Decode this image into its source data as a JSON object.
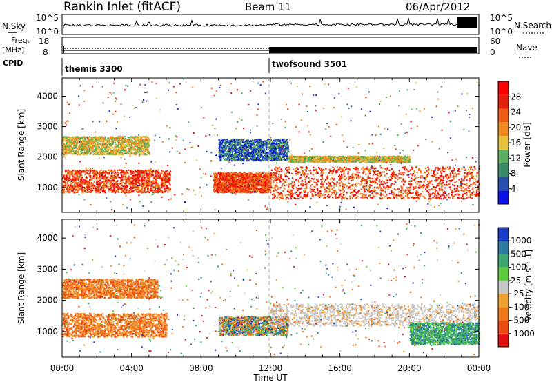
{
  "header": {
    "title": "Rankin Inlet (fitACF)",
    "beam": "Beam 11",
    "date": "06/Apr/2012"
  },
  "top_panels": {
    "nsky_label": "N.Sky",
    "nsky_ticks": [
      "10^5",
      "10^0"
    ],
    "nsearch_label": "N.Search",
    "nsearch_ticks": [
      "10^5",
      "10^0"
    ],
    "freq_label": "Freq.",
    "freq_unit": "[MHz]",
    "freq_ticks": [
      "18",
      "8"
    ],
    "nave_label": "Nave",
    "nave_ticks": [
      "60",
      "0"
    ],
    "cpid_label": "CPID",
    "cpid_modes": [
      {
        "name": "themis 3300",
        "start_hour": 0
      },
      {
        "name": "twofsound 3501",
        "start_hour": 12
      }
    ]
  },
  "chart_data": [
    {
      "type": "heatmap",
      "parameter": "Power",
      "ylabel": "Slant Range [km]",
      "ylim": [
        180,
        4600
      ],
      "y_ticks": [
        1000,
        2000,
        3000,
        4000
      ],
      "x_ticks": [
        "00:00",
        "04:00",
        "08:00",
        "12:00",
        "16:00",
        "20:00",
        "00:00"
      ],
      "xlim_hours": [
        0,
        24
      ],
      "colorbar": {
        "label": "Power [dB]",
        "ticks": [
          "4",
          "8",
          "12",
          "16",
          "20",
          "24",
          "28"
        ],
        "colors": [
          "#0a10e6",
          "#2a4fb0",
          "#3a8a6a",
          "#5ab060",
          "#e6c23a",
          "#f08a1e",
          "#ee5a12",
          "#e4200c",
          "#ff0000"
        ]
      },
      "regions": [
        {
          "t": [
            0.0,
            6.2
          ],
          "r": [
            850,
            1600
          ],
          "level": "high"
        },
        {
          "t": [
            0.0,
            5.0
          ],
          "r": [
            2100,
            2700
          ],
          "level": "medium"
        },
        {
          "t": [
            8.7,
            12.0
          ],
          "r": [
            850,
            1500
          ],
          "level": "high"
        },
        {
          "t": [
            12.0,
            24.0
          ],
          "r": [
            650,
            1700
          ],
          "level": "high"
        },
        {
          "t": [
            9.0,
            13.0
          ],
          "r": [
            1900,
            2600
          ],
          "level": "low"
        },
        {
          "t": [
            13.0,
            20.0
          ],
          "r": [
            1850,
            2050
          ],
          "level": "medium"
        }
      ]
    },
    {
      "type": "heatmap",
      "parameter": "Velocity",
      "ylabel": "Slant Range [km]",
      "ylim": [
        180,
        4600
      ],
      "y_ticks": [
        1000,
        2000,
        3000,
        4000
      ],
      "x_ticks": [
        "00:00",
        "04:00",
        "08:00",
        "12:00",
        "16:00",
        "20:00",
        "00:00"
      ],
      "xlabel": "Time UT",
      "xlim_hours": [
        0,
        24
      ],
      "colorbar": {
        "label": "Velocity [m s^-1]",
        "ticks": [
          "1000",
          "500",
          "100",
          "25",
          "-25",
          "-100",
          "-500",
          "-1000"
        ],
        "colors": [
          "#1a3cc8",
          "#2a7aa0",
          "#3aa870",
          "#5ccc3a",
          "#c8c8c8",
          "#f0a030",
          "#f07818",
          "#ee4a10",
          "#e41010"
        ]
      },
      "regions": [
        {
          "t": [
            0.0,
            6.0
          ],
          "r": [
            850,
            1600
          ],
          "level": "negative"
        },
        {
          "t": [
            0.0,
            5.5
          ],
          "r": [
            2100,
            2700
          ],
          "level": "negative"
        },
        {
          "t": [
            9.0,
            13.0
          ],
          "r": [
            900,
            1500
          ],
          "level": "mixed"
        },
        {
          "t": [
            12.0,
            24.0
          ],
          "r": [
            1200,
            1900
          ],
          "level": "near-zero"
        },
        {
          "t": [
            20.0,
            24.0
          ],
          "r": [
            600,
            1300
          ],
          "level": "positive"
        }
      ]
    }
  ]
}
